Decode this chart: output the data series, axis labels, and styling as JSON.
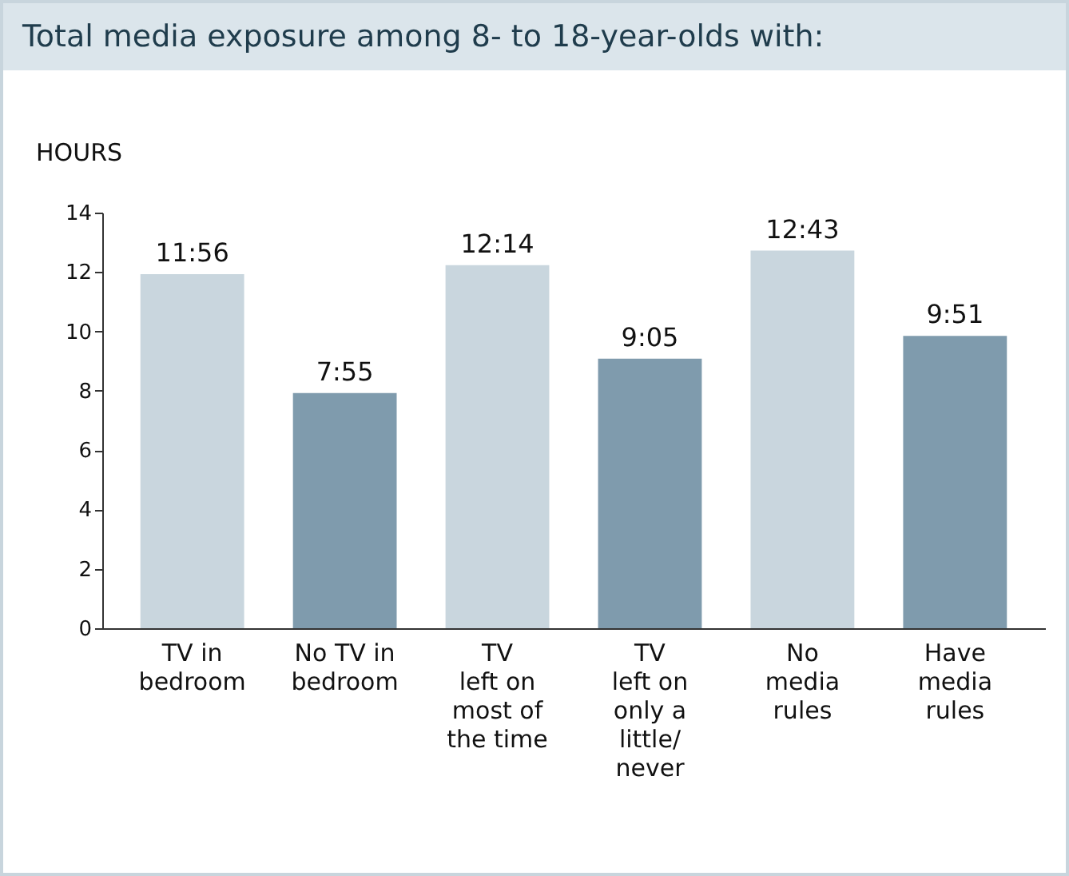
{
  "chart_data": {
    "type": "bar",
    "title": "Total media exposure among 8- to 18-year-olds with:",
    "ylabel": "HOURS",
    "categories": [
      "TV in\nbedroom",
      "No TV in\nbedroom",
      "TV\nleft on\nmost of\nthe time",
      "TV\nleft on\nonly a\nlittle/\nnever",
      "No\nmedia\nrules",
      "Have\nmedia\nrules"
    ],
    "values": [
      11.93,
      7.92,
      12.23,
      9.08,
      12.72,
      9.85
    ],
    "colors": [
      "#c9d6de",
      "#7f9bad",
      "#c9d6de",
      "#7f9bad",
      "#c9d6de",
      "#7f9bad"
    ],
    "value_labels": [
      "11:56",
      "7:55",
      "12:14",
      "9:05",
      "12:43",
      "9:51"
    ],
    "ylim": [
      0,
      14
    ],
    "yticks": [
      0,
      2,
      4,
      6,
      8,
      10,
      12,
      14
    ]
  }
}
